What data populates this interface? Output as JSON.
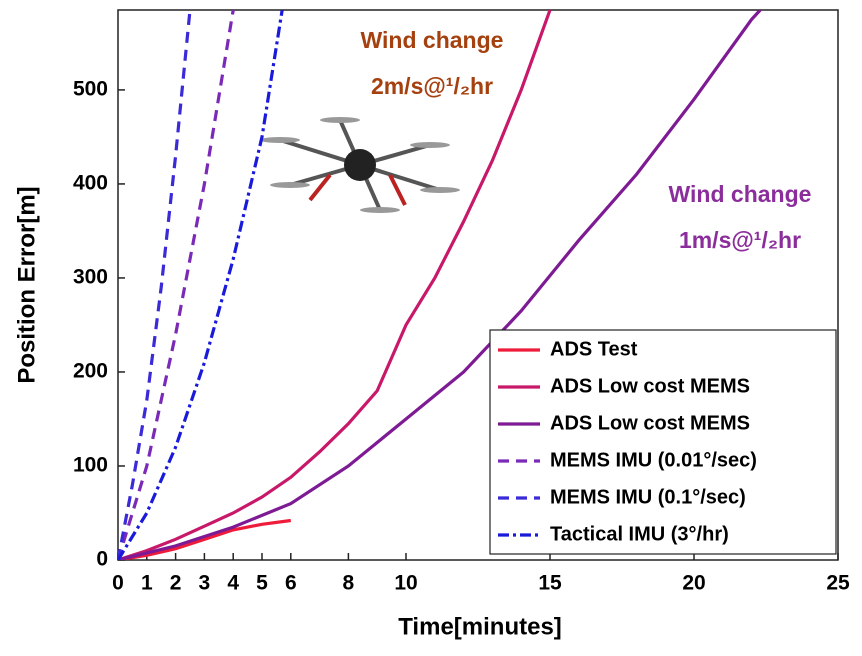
{
  "chart_data": {
    "type": "line",
    "xlabel": "Time[minutes]",
    "ylabel": "Position Error[m]",
    "xlim": [
      0,
      25
    ],
    "xticks": [
      0,
      1,
      2,
      3,
      4,
      5,
      6,
      8,
      10,
      15,
      20,
      25
    ],
    "ylim": [
      0,
      585
    ],
    "yticks": [
      0,
      100,
      200,
      300,
      400,
      500
    ],
    "grid": false,
    "legend": "lower right",
    "annotations": [
      {
        "lines": [
          "Wind change",
          "2m/s@¹/₂hr"
        ],
        "color": "#a5400f"
      },
      {
        "lines": [
          "Wind change",
          "1m/s@¹/₂hr"
        ],
        "color": "#8b2e9c"
      }
    ],
    "series": [
      {
        "name": "ADS Test",
        "color": "#ee1c3a",
        "style": "solid",
        "x": [
          0,
          1,
          2,
          3,
          4,
          5,
          6
        ],
        "values": [
          0,
          5,
          12,
          22,
          32,
          38,
          42
        ]
      },
      {
        "name": "ADS Low cost MEMS",
        "color": "#c8186a",
        "style": "solid",
        "x": [
          0,
          1,
          2,
          3,
          4,
          5,
          6,
          7,
          8,
          9,
          10,
          11,
          12,
          13,
          14,
          15
        ],
        "values": [
          0,
          10,
          22,
          36,
          50,
          67,
          88,
          115,
          145,
          180,
          250,
          300,
          360,
          425,
          500,
          585
        ]
      },
      {
        "name": "ADS Low cost MEMS",
        "color": "#7d1a94",
        "style": "solid",
        "x": [
          0,
          2,
          4,
          6,
          8,
          10,
          12,
          14,
          16,
          18,
          20,
          22,
          22.3
        ],
        "values": [
          0,
          15,
          35,
          60,
          100,
          150,
          200,
          265,
          340,
          410,
          490,
          575,
          585
        ]
      },
      {
        "name": "MEMS IMU (0.01°/sec)",
        "color": "#7b2ab8",
        "style": "dashed",
        "x": [
          0,
          1,
          2,
          3,
          4
        ],
        "values": [
          0,
          100,
          240,
          400,
          585
        ]
      },
      {
        "name": "MEMS IMU (0.1°/sec)",
        "color": "#3a2ad8",
        "style": "dashed",
        "x": [
          0,
          0.5,
          1,
          1.5,
          2,
          2.5
        ],
        "values": [
          0,
          80,
          170,
          290,
          430,
          585
        ]
      },
      {
        "name": "Tactical IMU (3°/hr)",
        "color": "#1a1adb",
        "style": "dashdot",
        "x": [
          0,
          1,
          2,
          3,
          4,
          5,
          5.7
        ],
        "values": [
          0,
          50,
          120,
          210,
          320,
          450,
          585
        ]
      }
    ]
  }
}
